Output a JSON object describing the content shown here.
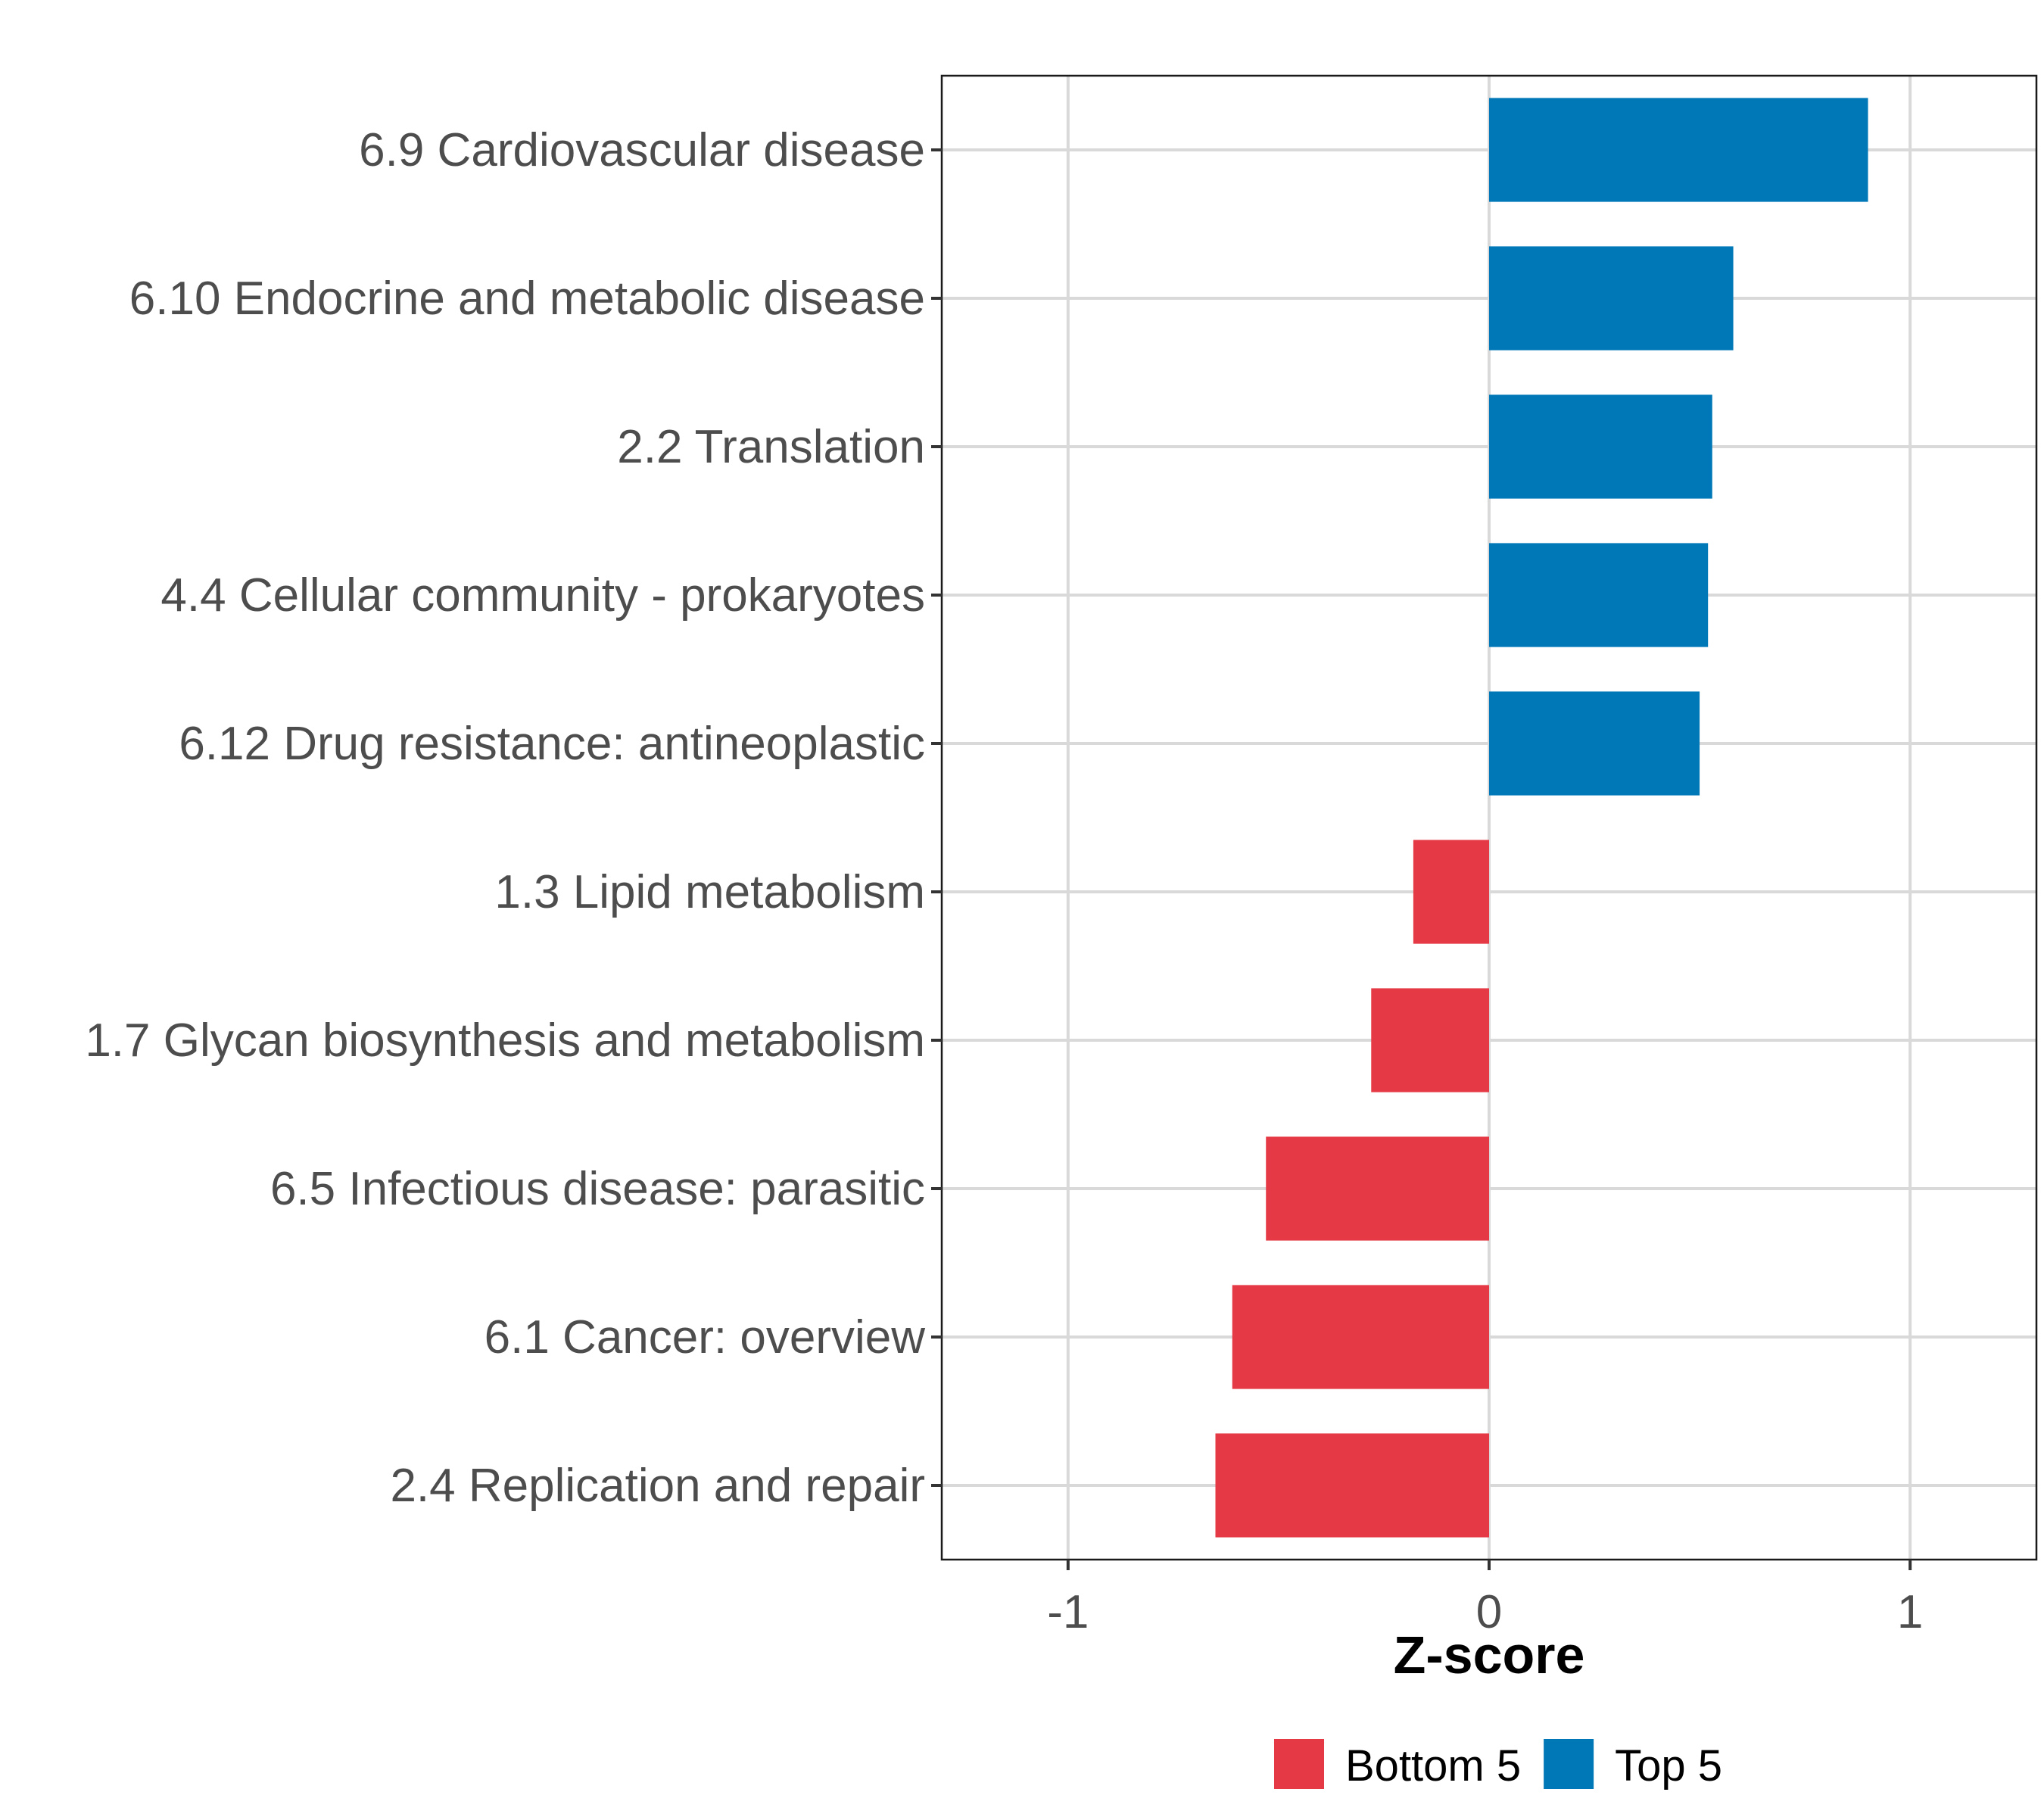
{
  "chart_data": {
    "type": "bar",
    "orientation": "horizontal",
    "title": "",
    "xlabel": "Z-score",
    "ylabel": "",
    "xlim": [
      -1.3,
      1.3
    ],
    "xticks": [
      -1,
      0,
      1
    ],
    "xtick_labels": [
      "-1",
      "0",
      "1"
    ],
    "grid": true,
    "legend_position": "bottom",
    "categories": [
      "6.9 Cardiovascular disease",
      "6.10 Endocrine and metabolic disease",
      "2.2 Translation",
      "4.4 Cellular community - prokaryotes",
      "6.12 Drug resistance: antineoplastic",
      "1.3 Lipid metabolism",
      "1.7 Glycan biosynthesis and metabolism",
      "6.5 Infectious disease: parasitic",
      "6.1 Cancer: overview",
      "2.4 Replication and repair"
    ],
    "values": [
      0.9,
      0.58,
      0.53,
      0.52,
      0.5,
      -0.18,
      -0.28,
      -0.53,
      -0.61,
      -0.65
    ],
    "groups": [
      "Top 5",
      "Top 5",
      "Top 5",
      "Top 5",
      "Top 5",
      "Bottom 5",
      "Bottom 5",
      "Bottom 5",
      "Bottom 5",
      "Bottom 5"
    ],
    "legend": [
      {
        "label": "Bottom 5",
        "color": "#E63946"
      },
      {
        "label": "Top 5",
        "color": "#0077B6"
      }
    ]
  }
}
